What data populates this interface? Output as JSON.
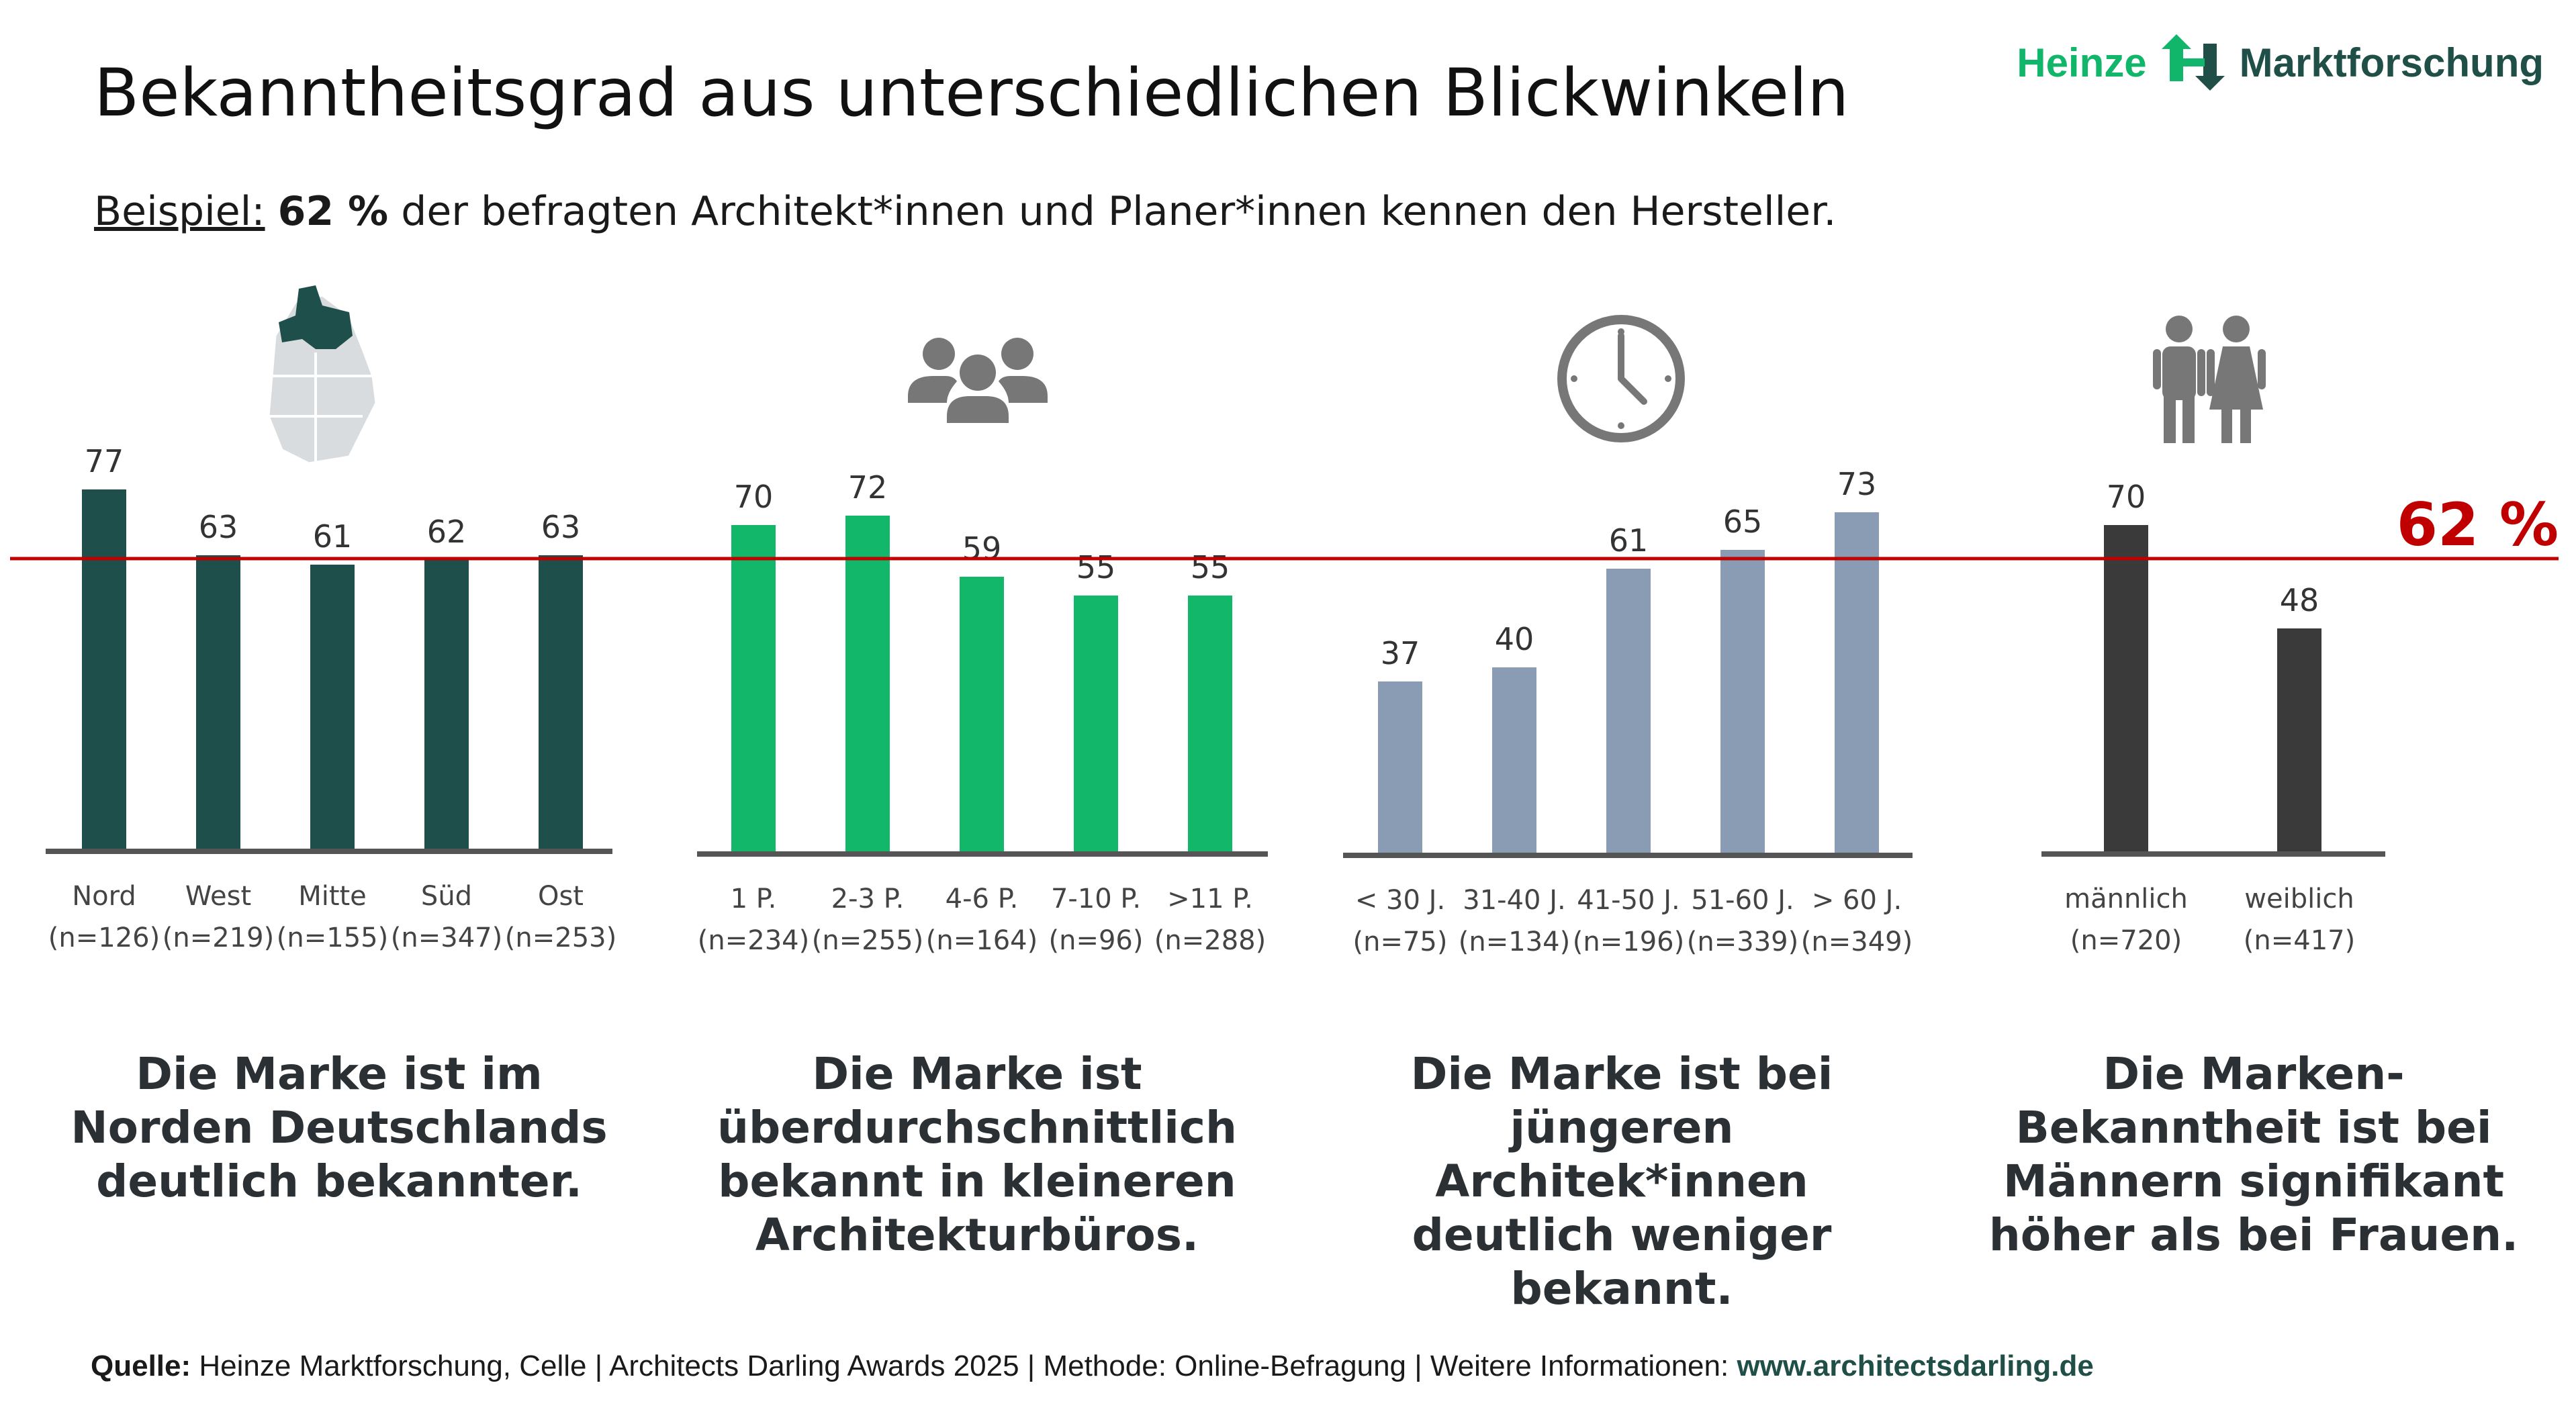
{
  "title": "Bekanntheitsgrad aus unterschiedlichen Blickwinkeln",
  "subtitle": {
    "label": "Beispiel:",
    "value": "62 %",
    "rest": "der befragten Architekt*innen und Planer*innen kennen den Hersteller."
  },
  "logo": {
    "left": "Heinze",
    "right": "Marktforschung",
    "icon": "heinze-arrows-logo",
    "left_color": "#12b66a",
    "right_color": "#1f4f47"
  },
  "icons": [
    "germany-map-icon",
    "people-group-icon",
    "clock-icon",
    "man-woman-icon"
  ],
  "chart_data": {
    "reference": {
      "value": 62,
      "label": "62 %",
      "color": "#c00000"
    },
    "groups": [
      {
        "type": "bar",
        "color": "#1f4f4a",
        "categories": [
          "Nord",
          "West",
          "Mitte",
          "Süd",
          "Ost"
        ],
        "counts": [
          "(n=126)",
          "(n=219)",
          "(n=155)",
          "(n=347)",
          "(n=253)"
        ],
        "values": [
          77,
          63,
          61,
          62,
          63
        ]
      },
      {
        "type": "bar",
        "color": "#12b76a",
        "categories": [
          "1 P.",
          "2-3 P.",
          "4-6 P.",
          "7-10 P.",
          ">11 P."
        ],
        "counts": [
          "(n=234)",
          "(n=255)",
          "(n=164)",
          "(n=96)",
          "(n=288)"
        ],
        "values": [
          70,
          72,
          59,
          55,
          55
        ]
      },
      {
        "type": "bar",
        "color": "#8a9cb4",
        "categories": [
          "< 30 J.",
          "31-40 J.",
          "41-50 J.",
          "51-60 J.",
          "> 60 J."
        ],
        "counts": [
          "(n=75)",
          "(n=134)",
          "(n=196)",
          "(n=339)",
          "(n=349)"
        ],
        "values": [
          37,
          40,
          61,
          65,
          73
        ]
      },
      {
        "type": "bar",
        "color": "#3a3a3a",
        "categories": [
          "männlich",
          "weiblich"
        ],
        "counts": [
          "(n=720)",
          "(n=417)"
        ],
        "values": [
          70,
          48
        ]
      }
    ]
  },
  "captions": [
    "Die Marke ist im\nNorden Deutschlands\ndeutlich bekannter.",
    "Die Marke ist\nüberdurchschnittlich\nbekannt in kleineren\nArchitekturbüros.",
    "Die Marke ist bei\njüngeren Architek*innen\ndeutlich weniger\nbekannt.",
    "Die Marken-\nBekanntheit ist bei\nMännern signifikant\nhöher als bei Frauen."
  ],
  "source": {
    "label": "Quelle:",
    "text": "Heinze Marktforschung, Celle | Architects Darling Awards 2025 | Methode: Online-Befragung | Weitere Informationen:",
    "url": "www.architectsdarling.de"
  }
}
